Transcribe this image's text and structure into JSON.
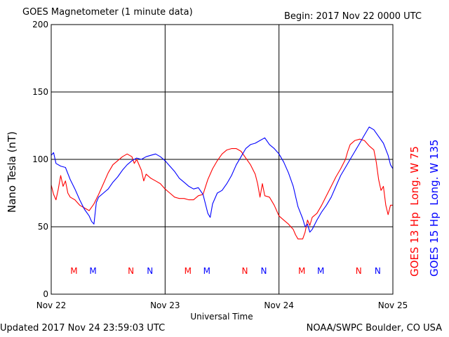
{
  "chart_data": {
    "type": "line",
    "title": "GOES Magnetometer (1 minute data)",
    "begin_label": "Begin:  2017 Nov 22 0000 UTC",
    "xlabel": "Universal Time",
    "ylabel": "Nano Tesla (nT)",
    "ylim": [
      0,
      200
    ],
    "yticks": [
      0,
      50,
      100,
      150,
      200
    ],
    "xlim_hours": [
      0,
      72
    ],
    "xticks": [
      {
        "hour": 0,
        "label": "Nov 22"
      },
      {
        "hour": 24,
        "label": "Nov 23"
      },
      {
        "hour": 48,
        "label": "Nov 24"
      },
      {
        "hour": 72,
        "label": "Nov 25"
      }
    ],
    "grid": true,
    "legend": [
      {
        "text": "GOES 13 Hp  Long. W 75",
        "color": "#ff0000"
      },
      {
        "text": "GOES 15 Hp  Long. W 135",
        "color": "#0000ff"
      }
    ],
    "markers": [
      {
        "label": "M",
        "hour": 4.8,
        "color": "#ff0000"
      },
      {
        "label": "M",
        "hour": 8.8,
        "color": "#0000ff"
      },
      {
        "label": "N",
        "hour": 16.8,
        "color": "#ff0000"
      },
      {
        "label": "N",
        "hour": 20.8,
        "color": "#0000ff"
      },
      {
        "label": "M",
        "hour": 28.8,
        "color": "#ff0000"
      },
      {
        "label": "M",
        "hour": 32.8,
        "color": "#0000ff"
      },
      {
        "label": "N",
        "hour": 40.8,
        "color": "#ff0000"
      },
      {
        "label": "N",
        "hour": 44.8,
        "color": "#0000ff"
      },
      {
        "label": "M",
        "hour": 52.8,
        "color": "#ff0000"
      },
      {
        "label": "M",
        "hour": 56.8,
        "color": "#0000ff"
      },
      {
        "label": "N",
        "hour": 64.8,
        "color": "#ff0000"
      },
      {
        "label": "N",
        "hour": 68.8,
        "color": "#0000ff"
      }
    ],
    "series": [
      {
        "name": "GOES 13 Hp",
        "color": "#ff0000",
        "points": [
          [
            0,
            81
          ],
          [
            0.5,
            74
          ],
          [
            1,
            70
          ],
          [
            1.5,
            78
          ],
          [
            2,
            88
          ],
          [
            2.5,
            80
          ],
          [
            3,
            84
          ],
          [
            3.5,
            75
          ],
          [
            4,
            72
          ],
          [
            5,
            70
          ],
          [
            6,
            66
          ],
          [
            7,
            64
          ],
          [
            8,
            62
          ],
          [
            9,
            67
          ],
          [
            10,
            74
          ],
          [
            11,
            82
          ],
          [
            12,
            90
          ],
          [
            13,
            96
          ],
          [
            14,
            99
          ],
          [
            15,
            102
          ],
          [
            16,
            104
          ],
          [
            17,
            102
          ],
          [
            17.5,
            97
          ],
          [
            18,
            100
          ],
          [
            19,
            92
          ],
          [
            19.5,
            84
          ],
          [
            20,
            89
          ],
          [
            21,
            86
          ],
          [
            22,
            84
          ],
          [
            23,
            82
          ],
          [
            24,
            78
          ],
          [
            25,
            75
          ],
          [
            26,
            72
          ],
          [
            27,
            71
          ],
          [
            28,
            71
          ],
          [
            29,
            70
          ],
          [
            30,
            70
          ],
          [
            31,
            73
          ],
          [
            32,
            74
          ],
          [
            33,
            85
          ],
          [
            34,
            93
          ],
          [
            35,
            99
          ],
          [
            36,
            104
          ],
          [
            37,
            107
          ],
          [
            38,
            108
          ],
          [
            39,
            108
          ],
          [
            40,
            106
          ],
          [
            41,
            101
          ],
          [
            42,
            96
          ],
          [
            43,
            89
          ],
          [
            43.5,
            82
          ],
          [
            44,
            72
          ],
          [
            44.5,
            82
          ],
          [
            45,
            73
          ],
          [
            46,
            72
          ],
          [
            47,
            66
          ],
          [
            48,
            58
          ],
          [
            49,
            55
          ],
          [
            50,
            52
          ],
          [
            51,
            48
          ],
          [
            51.5,
            44
          ],
          [
            52,
            41
          ],
          [
            53,
            41
          ],
          [
            53.5,
            46
          ],
          [
            54,
            55
          ],
          [
            54.5,
            51
          ],
          [
            55,
            57
          ],
          [
            56,
            60
          ],
          [
            57,
            66
          ],
          [
            58,
            73
          ],
          [
            59,
            80
          ],
          [
            60,
            87
          ],
          [
            61,
            93
          ],
          [
            62,
            100
          ],
          [
            62.5,
            106
          ],
          [
            63,
            111
          ],
          [
            64,
            114
          ],
          [
            65,
            115
          ],
          [
            66,
            114
          ],
          [
            67,
            110
          ],
          [
            68,
            107
          ],
          [
            68.5,
            98
          ],
          [
            69,
            85
          ],
          [
            69.5,
            77
          ],
          [
            70,
            80
          ],
          [
            70.5,
            66
          ],
          [
            71,
            59
          ],
          [
            71.5,
            66
          ],
          [
            72,
            66
          ]
        ]
      },
      {
        "name": "GOES 15 Hp",
        "color": "#0000ff",
        "points": [
          [
            0,
            103
          ],
          [
            0.5,
            105
          ],
          [
            1,
            97
          ],
          [
            2,
            95
          ],
          [
            3,
            94
          ],
          [
            4,
            85
          ],
          [
            5,
            78
          ],
          [
            6,
            70
          ],
          [
            7,
            63
          ],
          [
            8,
            58
          ],
          [
            8.5,
            54
          ],
          [
            9,
            52
          ],
          [
            9.5,
            68
          ],
          [
            10,
            72
          ],
          [
            11,
            75
          ],
          [
            12,
            78
          ],
          [
            13,
            83
          ],
          [
            14,
            87
          ],
          [
            15,
            92
          ],
          [
            16,
            96
          ],
          [
            17,
            99
          ],
          [
            18,
            101
          ],
          [
            19,
            100
          ],
          [
            20,
            102
          ],
          [
            21,
            103
          ],
          [
            22,
            104
          ],
          [
            23,
            102
          ],
          [
            24,
            99
          ],
          [
            25,
            95
          ],
          [
            26,
            91
          ],
          [
            27,
            86
          ],
          [
            28,
            83
          ],
          [
            29,
            80
          ],
          [
            30,
            78
          ],
          [
            31,
            79
          ],
          [
            32,
            74
          ],
          [
            33,
            60
          ],
          [
            33.5,
            57
          ],
          [
            34,
            67
          ],
          [
            35,
            75
          ],
          [
            36,
            77
          ],
          [
            37,
            82
          ],
          [
            38,
            88
          ],
          [
            39,
            96
          ],
          [
            40,
            102
          ],
          [
            41,
            108
          ],
          [
            42,
            111
          ],
          [
            43,
            112
          ],
          [
            44,
            114
          ],
          [
            45,
            116
          ],
          [
            46,
            111
          ],
          [
            47,
            108
          ],
          [
            48,
            104
          ],
          [
            49,
            98
          ],
          [
            50,
            90
          ],
          [
            51,
            80
          ],
          [
            52,
            65
          ],
          [
            53,
            56
          ],
          [
            53.5,
            50
          ],
          [
            54,
            52
          ],
          [
            54.5,
            46
          ],
          [
            55,
            48
          ],
          [
            56,
            55
          ],
          [
            57,
            61
          ],
          [
            58,
            66
          ],
          [
            59,
            72
          ],
          [
            60,
            80
          ],
          [
            61,
            88
          ],
          [
            62,
            94
          ],
          [
            63,
            100
          ],
          [
            64,
            106
          ],
          [
            65,
            112
          ],
          [
            66,
            118
          ],
          [
            67,
            124
          ],
          [
            68,
            122
          ],
          [
            69,
            117
          ],
          [
            70,
            112
          ],
          [
            71,
            103
          ],
          [
            71.5,
            96
          ],
          [
            72,
            93
          ]
        ]
      }
    ]
  },
  "footer": {
    "updated": "Updated 2017 Nov 24 23:59:03 UTC",
    "credit": "NOAA/SWPC Boulder, CO USA"
  }
}
